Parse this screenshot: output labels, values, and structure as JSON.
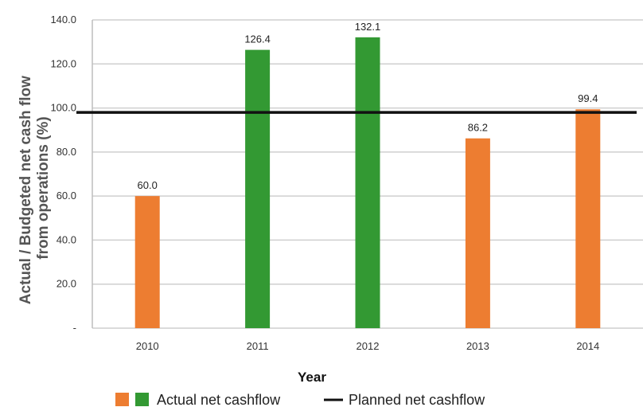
{
  "chart_data": {
    "type": "bar",
    "categories": [
      "2010",
      "2011",
      "2012",
      "2013",
      "2014"
    ],
    "series": [
      {
        "name": "Actual net cashflow",
        "values": [
          60.0,
          126.4,
          132.1,
          86.2,
          99.4
        ],
        "value_labels": [
          "60.0",
          "126.4",
          "132.1",
          "86.2",
          "99.4"
        ],
        "colors": [
          "#ED7D31",
          "#339933",
          "#339933",
          "#ED7D31",
          "#ED7D31"
        ]
      },
      {
        "name": "Planned net cashflow",
        "type": "line",
        "value": 98,
        "color": "#111111"
      }
    ],
    "xlabel": "Year",
    "ylabel_lines": [
      "Actual / Budgeted net cash flow",
      "from operations (%)"
    ],
    "ylim": [
      0,
      140
    ],
    "yticks": [
      0,
      20,
      40,
      60,
      80,
      100,
      120,
      140
    ],
    "ytick_labels": [
      "-",
      "20.0",
      "40.0",
      "60.0",
      "80.0",
      "100.0",
      "120.0",
      "140.0"
    ],
    "grid": true,
    "legend": {
      "placement": "bottom",
      "items": [
        {
          "label": "Actual net cashflow",
          "swatches": [
            "#ED7D31",
            "#339933"
          ]
        },
        {
          "label": "Planned net cashflow",
          "line_color": "#111111"
        }
      ]
    }
  }
}
